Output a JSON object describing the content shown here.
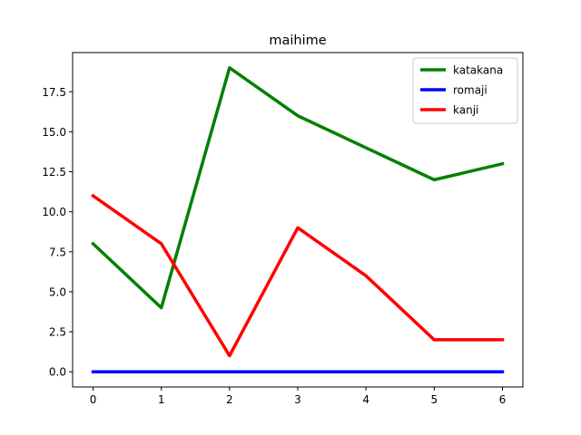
{
  "chart_data": {
    "type": "line",
    "title": "maihime",
    "xlabel": "",
    "ylabel": "",
    "x": [
      0,
      1,
      2,
      3,
      4,
      5,
      6
    ],
    "xlim": [
      -0.3,
      6.3
    ],
    "ylim": [
      -0.95,
      19.95
    ],
    "xticks": [
      0,
      1,
      2,
      3,
      4,
      5,
      6
    ],
    "yticks": [
      0.0,
      2.5,
      5.0,
      7.5,
      10.0,
      12.5,
      15.0,
      17.5
    ],
    "xtick_labels": [
      "0",
      "1",
      "2",
      "3",
      "4",
      "5",
      "6"
    ],
    "ytick_labels": [
      "0.0",
      "2.5",
      "5.0",
      "7.5",
      "10.0",
      "12.5",
      "15.0",
      "17.5"
    ],
    "grid": false,
    "legend_position": "top-right",
    "series": [
      {
        "name": "katakana",
        "color": "#008000",
        "values": [
          8,
          4,
          19,
          16,
          14,
          12,
          13
        ]
      },
      {
        "name": "romaji",
        "color": "#0000ff",
        "values": [
          0,
          0,
          0,
          0,
          0,
          0,
          0
        ]
      },
      {
        "name": "kanji",
        "color": "#ff0000",
        "values": [
          11,
          8,
          1,
          9,
          6,
          2,
          2
        ]
      }
    ]
  }
}
